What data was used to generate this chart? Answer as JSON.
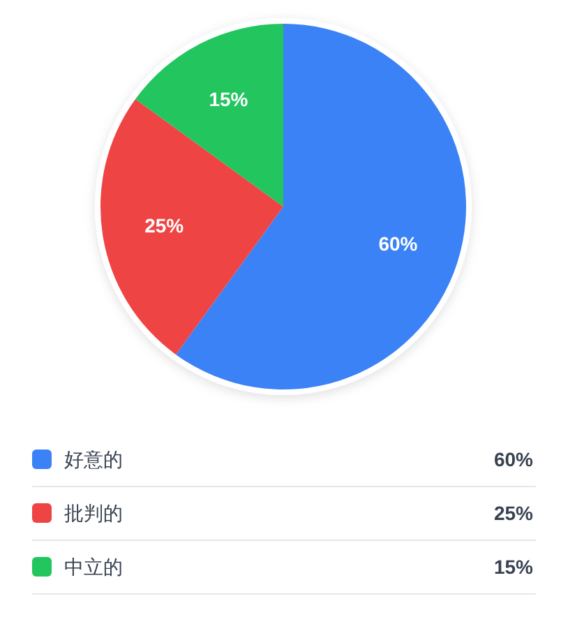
{
  "chart_data": {
    "type": "pie",
    "categories": [
      "好意的",
      "批判的",
      "中立的"
    ],
    "values": [
      60,
      25,
      15
    ],
    "colors": [
      "#3b82f6",
      "#ef4444",
      "#22c55e"
    ],
    "value_labels": [
      "60%",
      "25%",
      "15%"
    ],
    "legend": "bottom"
  }
}
